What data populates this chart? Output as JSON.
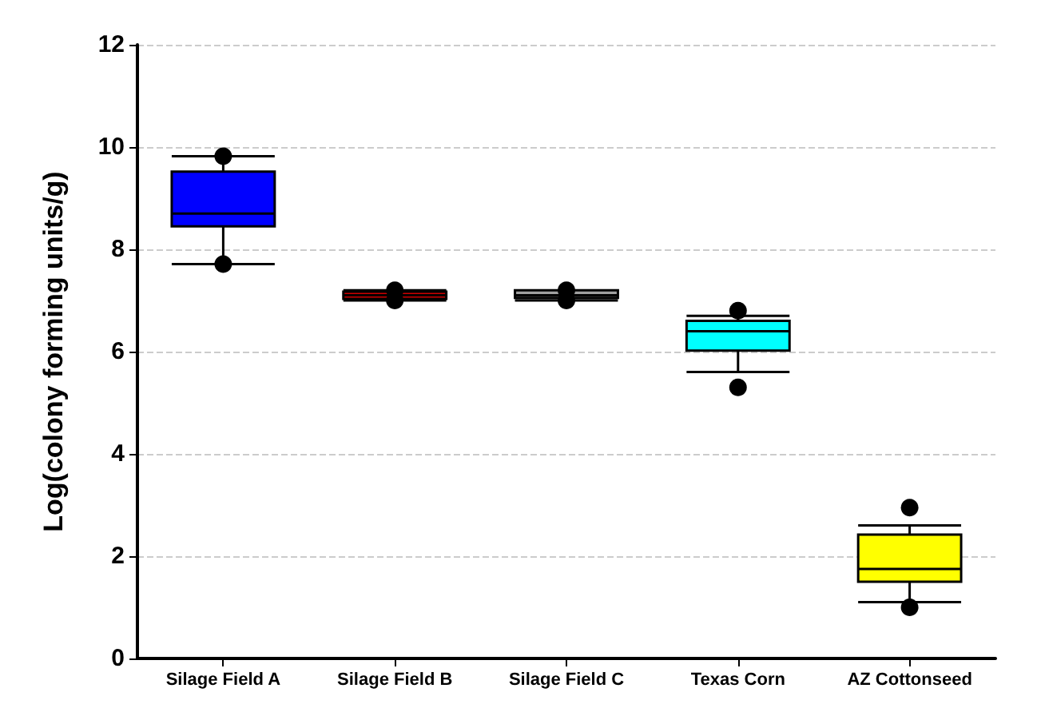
{
  "chart_data": {
    "type": "box",
    "ylabel": "Log(colony forming units/g)",
    "categories": [
      "Silage Field A",
      "Silage Field B",
      "Silage Field C",
      "Texas Corn",
      "AZ Cottonseed"
    ],
    "boxes": [
      {
        "low": 7.71,
        "q1": 8.45,
        "median": 8.7,
        "q3": 9.52,
        "high": 9.82,
        "outliers": [
          9.82,
          7.71
        ]
      },
      {
        "low": 7.0,
        "q1": 7.03,
        "median": 7.1,
        "q3": 7.17,
        "high": 7.2,
        "outliers": [
          7.2,
          7.0
        ]
      },
      {
        "low": 7.0,
        "q1": 7.05,
        "median": 7.1,
        "q3": 7.2,
        "high": 7.2,
        "outliers": [
          7.2,
          7.0
        ]
      },
      {
        "low": 5.6,
        "q1": 6.02,
        "median": 6.4,
        "q3": 6.6,
        "high": 6.7,
        "outliers": [
          6.8,
          5.3
        ]
      },
      {
        "low": 1.1,
        "q1": 1.5,
        "median": 1.75,
        "q3": 2.42,
        "high": 2.6,
        "outliers": [
          2.95,
          1.0
        ]
      }
    ],
    "colors": [
      "#0000ff",
      "#cc0000",
      "#a0a0a0",
      "#00ffff",
      "#ffff00"
    ],
    "ylim": [
      0,
      12
    ],
    "yticks": [
      0,
      2,
      4,
      6,
      8,
      10,
      12
    ],
    "grid": "y"
  }
}
